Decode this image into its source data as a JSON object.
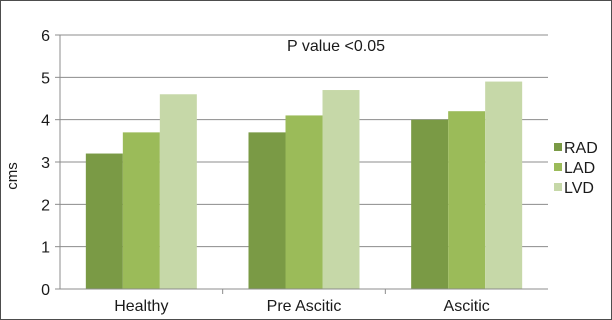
{
  "chart_data": {
    "type": "bar",
    "title": "",
    "annotation": "P value <0.05",
    "xlabel": "",
    "ylabel": "cms",
    "categories": [
      "Healthy",
      "Pre Ascitic",
      "Ascitic"
    ],
    "series": [
      {
        "name": "RAD",
        "values": [
          3.2,
          3.7,
          4.0
        ],
        "color": "#7a9a45"
      },
      {
        "name": "LAD",
        "values": [
          3.7,
          4.1,
          4.2
        ],
        "color": "#9bbb59"
      },
      {
        "name": "LVD",
        "values": [
          4.6,
          4.7,
          4.9
        ],
        "color": "#c6d8a8"
      }
    ],
    "ylim": [
      0,
      6
    ],
    "yticks": [
      0,
      1,
      2,
      3,
      4,
      5,
      6
    ],
    "grid": true,
    "legend_position": "right"
  }
}
